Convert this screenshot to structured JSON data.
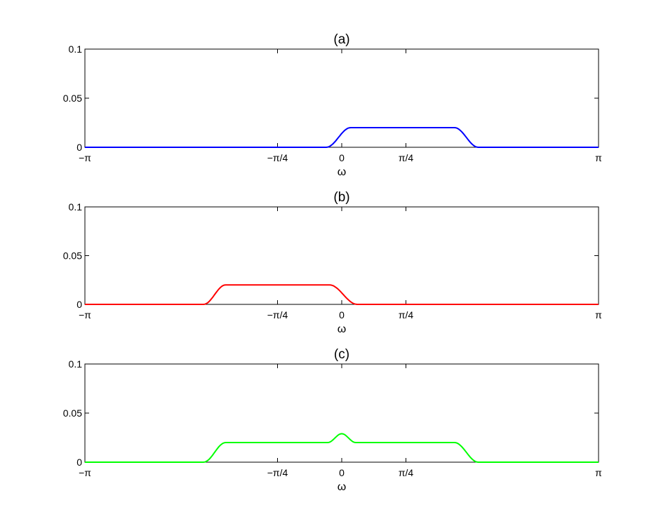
{
  "chart_data": [
    {
      "type": "line",
      "title": "(a)",
      "xlabel": "ω",
      "ylabel": "",
      "xlim": [
        -3.14159,
        3.14159
      ],
      "ylim": [
        0,
        0.1
      ],
      "xticks": [
        {
          "value": -3.14159,
          "label": "−π"
        },
        {
          "value": -0.7854,
          "label": "−π/4"
        },
        {
          "value": 0,
          "label": "0"
        },
        {
          "value": 0.7854,
          "label": "π/4"
        },
        {
          "value": 3.14159,
          "label": "π"
        }
      ],
      "yticks": [
        {
          "value": 0,
          "label": "0"
        },
        {
          "value": 0.05,
          "label": "0.05"
        },
        {
          "value": 0.1,
          "label": "0.1"
        }
      ],
      "color": "#0000ff",
      "points": [
        [
          -3.14159,
          0
        ],
        [
          -0.19,
          0
        ],
        [
          0.11,
          0.02
        ],
        [
          1.38,
          0.02
        ],
        [
          1.67,
          0
        ],
        [
          3.14159,
          0
        ]
      ]
    },
    {
      "type": "line",
      "title": "(b)",
      "xlabel": "ω",
      "ylabel": "",
      "xlim": [
        -3.14159,
        3.14159
      ],
      "ylim": [
        0,
        0.1
      ],
      "xticks": [
        {
          "value": -3.14159,
          "label": "−π"
        },
        {
          "value": -0.7854,
          "label": "−π/4"
        },
        {
          "value": 0,
          "label": "0"
        },
        {
          "value": 0.7854,
          "label": "π/4"
        },
        {
          "value": 3.14159,
          "label": "π"
        }
      ],
      "yticks": [
        {
          "value": 0,
          "label": "0"
        },
        {
          "value": 0.05,
          "label": "0.05"
        },
        {
          "value": 0.1,
          "label": "0.1"
        }
      ],
      "color": "#ff0000",
      "points": [
        [
          -3.14159,
          0
        ],
        [
          -1.69,
          0
        ],
        [
          -1.42,
          0.02
        ],
        [
          -0.15,
          0.02
        ],
        [
          0.19,
          0
        ],
        [
          3.14159,
          0
        ]
      ]
    },
    {
      "type": "line",
      "title": "(c)",
      "xlabel": "ω",
      "ylabel": "",
      "xlim": [
        -3.14159,
        3.14159
      ],
      "ylim": [
        0,
        0.1
      ],
      "xticks": [
        {
          "value": -3.14159,
          "label": "−π"
        },
        {
          "value": -0.7854,
          "label": "−π/4"
        },
        {
          "value": 0,
          "label": "0"
        },
        {
          "value": 0.7854,
          "label": "π/4"
        },
        {
          "value": 3.14159,
          "label": "π"
        }
      ],
      "yticks": [
        {
          "value": 0,
          "label": "0"
        },
        {
          "value": 0.05,
          "label": "0.05"
        },
        {
          "value": 0.1,
          "label": "0.1"
        }
      ],
      "color": "#00ff00",
      "points": [
        [
          -3.14159,
          0
        ],
        [
          -1.69,
          0
        ],
        [
          -1.42,
          0.02
        ],
        [
          -0.17,
          0.02
        ],
        [
          0,
          0.029
        ],
        [
          0.17,
          0.02
        ],
        [
          1.38,
          0.02
        ],
        [
          1.67,
          0
        ],
        [
          3.14159,
          0
        ]
      ]
    }
  ]
}
